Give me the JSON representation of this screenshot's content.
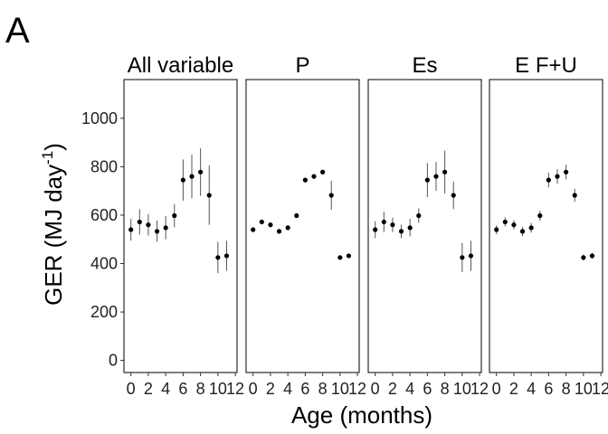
{
  "figure": {
    "panel_letter": "A"
  },
  "chart_data": {
    "type": "scatter",
    "subtype": "faceted point-range",
    "xlabel": "Age (months)",
    "ylabel_main": "GER (MJ day",
    "ylabel_sup": "-1",
    "ylabel_close": ")",
    "ylim": [
      -50,
      1160
    ],
    "xlim": [
      -0.8,
      12.2
    ],
    "y_ticks": [
      0,
      200,
      400,
      600,
      800,
      1000
    ],
    "x_ticks": [
      0,
      2,
      4,
      6,
      8,
      10,
      12
    ],
    "grid": false,
    "x": [
      0,
      1,
      2,
      3,
      4,
      5,
      6,
      7,
      8,
      9,
      10,
      11
    ],
    "facets": [
      {
        "strip_label": "All variable",
        "y": [
          540,
          572,
          560,
          533,
          548,
          598,
          745,
          760,
          778,
          682,
          425,
          432
        ],
        "lower": [
          495,
          520,
          515,
          490,
          500,
          550,
          660,
          670,
          680,
          560,
          360,
          370
        ],
        "upper": [
          585,
          625,
          605,
          578,
          596,
          646,
          830,
          850,
          876,
          806,
          490,
          494
        ]
      },
      {
        "strip_label": "P",
        "y": [
          540,
          572,
          560,
          533,
          548,
          598,
          745,
          760,
          778,
          682,
          425,
          432
        ],
        "lower": [
          530,
          562,
          550,
          523,
          538,
          588,
          735,
          750,
          768,
          622,
          417,
          424
        ],
        "upper": [
          550,
          582,
          570,
          543,
          558,
          608,
          755,
          770,
          788,
          742,
          433,
          440
        ]
      },
      {
        "strip_label": "Es",
        "y": [
          540,
          572,
          560,
          533,
          548,
          598,
          745,
          760,
          778,
          682,
          425,
          432
        ],
        "lower": [
          505,
          530,
          530,
          505,
          512,
          568,
          675,
          700,
          690,
          625,
          365,
          370
        ],
        "upper": [
          575,
          614,
          590,
          561,
          584,
          628,
          815,
          820,
          866,
          739,
          485,
          494
        ]
      },
      {
        "strip_label": "E F+U",
        "y": [
          540,
          572,
          560,
          533,
          548,
          598,
          745,
          760,
          778,
          682,
          425,
          432
        ],
        "lower": [
          522,
          553,
          541,
          514,
          528,
          578,
          715,
          730,
          748,
          655,
          413,
          420
        ],
        "upper": [
          558,
          591,
          579,
          552,
          568,
          618,
          775,
          790,
          808,
          709,
          437,
          444
        ]
      }
    ]
  }
}
